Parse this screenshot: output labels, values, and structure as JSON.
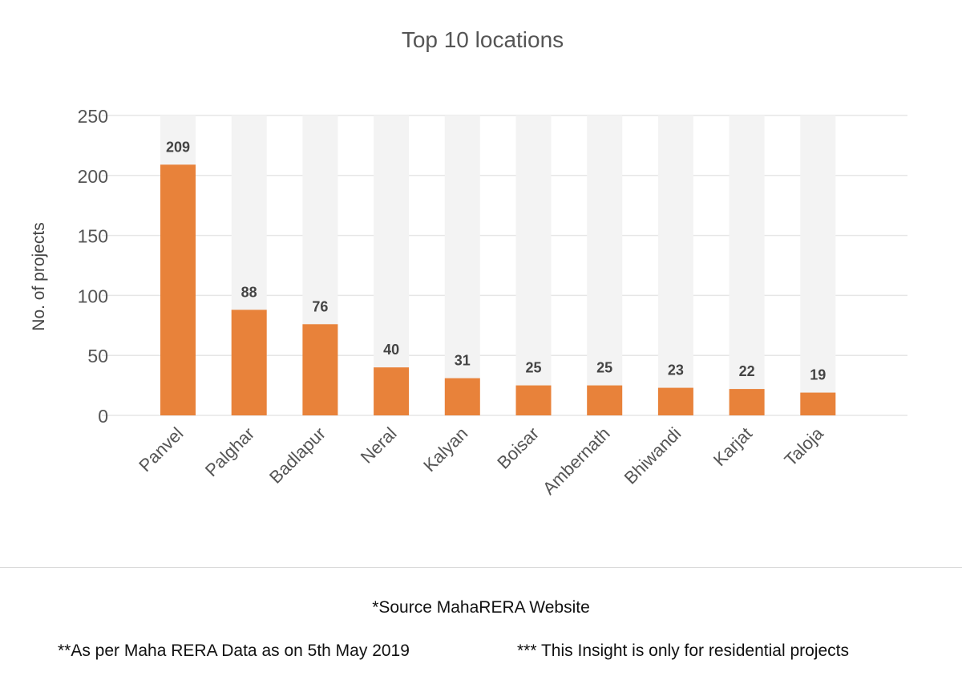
{
  "chart_data": {
    "type": "bar",
    "title": "Top 10 locations",
    "xlabel": "",
    "ylabel": "No. of projects",
    "categories": [
      "Panvel",
      "Palghar",
      "Badlapur",
      "Neral",
      "Kalyan",
      "Boisar",
      "Ambernath",
      "Bhiwandi",
      "Karjat",
      "Taloja"
    ],
    "values": [
      209,
      88,
      76,
      40,
      31,
      25,
      25,
      23,
      22,
      19
    ],
    "ylim": [
      0,
      250
    ],
    "yticks": [
      0,
      50,
      100,
      150,
      200,
      250
    ],
    "grid": true,
    "legend": "none",
    "colors": {
      "bar": "#e8823a",
      "background_bar": "#f3f3f3",
      "grid": "#e6e6e6",
      "text": "#555555"
    }
  },
  "footnotes": {
    "source": "*Source MahaRERA Website",
    "data_as_on": "**As per Maha RERA Data as on 5th May 2019",
    "insight": "*** This Insight is only for residential projects"
  }
}
